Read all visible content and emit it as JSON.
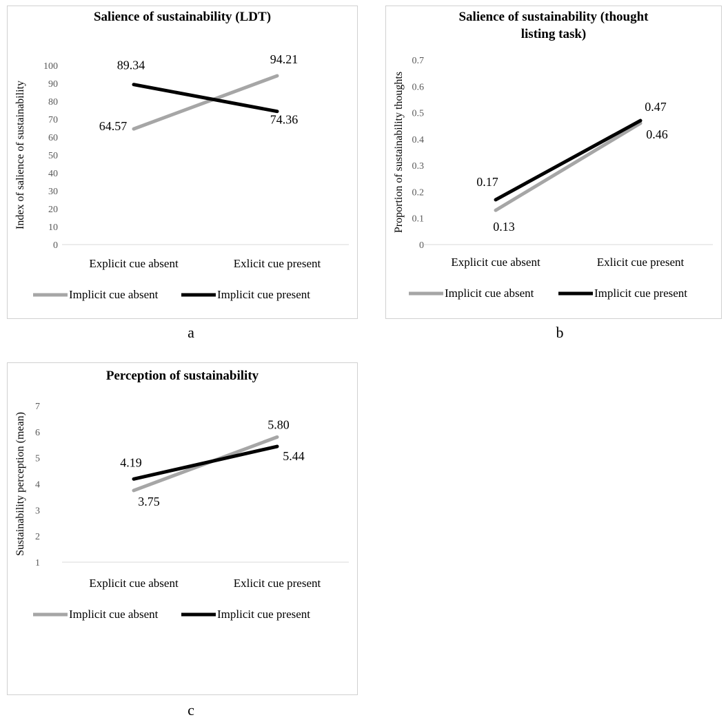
{
  "chart_data": [
    {
      "type": "line",
      "panel_label": "a",
      "title": "Salience of sustainability (LDT)",
      "xlabel": "",
      "ylabel": "Index of salience of sustainability",
      "categories": [
        "Explicit cue absent",
        "Exlicit cue present"
      ],
      "ylim": [
        0,
        100
      ],
      "yticks": [
        "0",
        "10",
        "20",
        "30",
        "40",
        "50",
        "60",
        "70",
        "80",
        "90",
        "100"
      ],
      "grid": false,
      "legend_position": "bottom",
      "series": [
        {
          "name": "Implicit cue absent",
          "color": "#a6a6a6",
          "values": [
            64.57,
            94.21
          ],
          "labels": [
            "64.57",
            "94.21"
          ]
        },
        {
          "name": "Implicit cue present",
          "color": "#000000",
          "values": [
            89.34,
            74.36
          ],
          "labels": [
            "89.34",
            "74.36"
          ]
        }
      ]
    },
    {
      "type": "line",
      "panel_label": "b",
      "title": "Salience of sustainability (thought listing task)",
      "title_lines": [
        "Salience of sustainability (thought",
        "listing task)"
      ],
      "xlabel": "",
      "ylabel": "Proportion of sustainability thoughts",
      "categories": [
        "Explicit cue absent",
        "Exlicit cue present"
      ],
      "ylim": [
        0,
        0.7
      ],
      "yticks": [
        "0",
        "0.1",
        "0.2",
        "0.3",
        "0.4",
        "0.5",
        "0.6",
        "0.7"
      ],
      "grid": false,
      "legend_position": "bottom",
      "series": [
        {
          "name": "Implicit cue absent",
          "color": "#a6a6a6",
          "values": [
            0.13,
            0.46
          ],
          "labels": [
            "0.13",
            "0.46"
          ]
        },
        {
          "name": "Implicit cue present",
          "color": "#000000",
          "values": [
            0.17,
            0.47
          ],
          "labels": [
            "0.17",
            "0.47"
          ]
        }
      ]
    },
    {
      "type": "line",
      "panel_label": "c",
      "title": "Perception of sustainability",
      "xlabel": "",
      "ylabel": "Sustainability perception (mean)",
      "categories": [
        "Explicit cue absent",
        "Exlicit cue present"
      ],
      "ylim": [
        1,
        7
      ],
      "yticks": [
        "1",
        "2",
        "3",
        "4",
        "5",
        "6",
        "7"
      ],
      "grid": false,
      "legend_position": "bottom",
      "series": [
        {
          "name": "Implicit cue absent",
          "color": "#a6a6a6",
          "values": [
            3.75,
            5.8
          ],
          "labels": [
            "3.75",
            "5.80"
          ]
        },
        {
          "name": "Implicit cue present",
          "color": "#000000",
          "values": [
            4.19,
            5.44
          ],
          "labels": [
            "4.19",
            "5.44"
          ]
        }
      ]
    }
  ]
}
